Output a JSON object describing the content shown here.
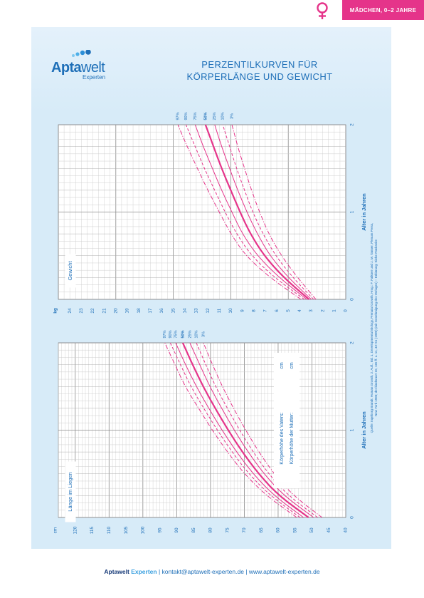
{
  "badge": {
    "label": "MÄDCHEN, 0–2 JAHRE"
  },
  "logo": {
    "name_bold": "Apta",
    "name_thin": "welt",
    "sub": "Experten"
  },
  "title": {
    "line1": "PERZENTILKURVEN FÜR",
    "line2": "KÖRPERLÄNGE UND GEWICHT"
  },
  "colors": {
    "accent": "#e5348a",
    "blue": "#1e6fb8",
    "panel": "#d7ebf8"
  },
  "source_text": "Quelle: Ingeborg Brandt: Human Growth, 2. Aufl., Bd. 1, Developmental Biology, Prenatal Growth, Hrsg.: F. Falkner und J. M. Tanner, Plenum Press, New York 1986; der kinderarzt 10, 165 ff. u. 11, 43–51 (1980) (mit Genehmigung des Verlages) – Erklärung: Siehe Rückseite",
  "footer": {
    "brand_bold": "Aptawelt",
    "brand_light": "Experten",
    "rest": " | kontakt@aptawelt-experten.de | www.aptawelt-experten.de"
  },
  "chart_data": [
    {
      "type": "line",
      "name": "Gewicht",
      "label": "Gewicht",
      "xlabel": "Alter in Jahren",
      "ylabel": "kg",
      "xlim": [
        0,
        2
      ],
      "ylim": [
        0,
        25
      ],
      "x_ticks": [
        "0",
        "1",
        "2"
      ],
      "y_ticks": [
        "0",
        "1",
        "2",
        "3",
        "4",
        "5",
        "6",
        "7",
        "8",
        "9",
        "10",
        "11",
        "12",
        "13",
        "14",
        "15",
        "16",
        "17",
        "18",
        "19",
        "20",
        "21",
        "22",
        "23",
        "24"
      ],
      "x": [
        0,
        0.25,
        0.5,
        0.75,
        1.0,
        1.25,
        1.5,
        1.75,
        2.0
      ],
      "series": [
        {
          "name": "97%",
          "style": "dashdot",
          "values": [
            3.9,
            6.6,
            8.7,
            10.0,
            11.0,
            12.0,
            12.9,
            13.8,
            14.6
          ]
        },
        {
          "name": "90%",
          "style": "dashed",
          "values": [
            3.6,
            6.2,
            8.2,
            9.5,
            10.5,
            11.4,
            12.3,
            13.1,
            13.9
          ]
        },
        {
          "name": "75%",
          "style": "solid",
          "values": [
            3.4,
            5.8,
            7.7,
            9.0,
            9.9,
            10.8,
            11.6,
            12.4,
            13.1
          ]
        },
        {
          "name": "50%",
          "style": "bold",
          "values": [
            3.2,
            5.4,
            7.1,
            8.3,
            9.2,
            10.0,
            10.8,
            11.5,
            12.2
          ]
        },
        {
          "name": "25%",
          "style": "solid",
          "values": [
            3.0,
            5.0,
            6.6,
            7.7,
            8.6,
            9.4,
            10.1,
            10.8,
            11.4
          ]
        },
        {
          "name": "10%",
          "style": "dashed",
          "values": [
            2.8,
            4.6,
            6.1,
            7.2,
            8.1,
            8.8,
            9.5,
            10.1,
            10.7
          ]
        },
        {
          "name": "3%",
          "style": "dashdot",
          "values": [
            2.6,
            4.2,
            5.6,
            6.7,
            7.5,
            8.2,
            8.8,
            9.4,
            9.9
          ]
        }
      ]
    },
    {
      "type": "line",
      "name": "Länge im Liegen",
      "label": "Länge im Liegen",
      "xlabel": "Alter in Jahren",
      "ylabel": "cm",
      "xlim": [
        0,
        2
      ],
      "ylim": [
        40,
        125
      ],
      "x_ticks": [
        "0",
        "1",
        "2"
      ],
      "y_ticks": [
        "40",
        "45",
        "50",
        "55",
        "60",
        "65",
        "70",
        "75",
        "80",
        "85",
        "90",
        "95",
        "100",
        "105",
        "110",
        "115",
        "120"
      ],
      "x": [
        0,
        0.25,
        0.5,
        0.75,
        1.0,
        1.25,
        1.5,
        1.75,
        2.0
      ],
      "series": [
        {
          "name": "97%",
          "style": "dashdot",
          "values": [
            54.5,
            63.5,
            70.0,
            75.0,
            79.5,
            83.5,
            87.5,
            90.5,
            93.5
          ]
        },
        {
          "name": "90%",
          "style": "dashed",
          "values": [
            53.5,
            62.3,
            68.7,
            73.6,
            78.0,
            82.0,
            85.8,
            88.9,
            91.9
          ]
        },
        {
          "name": "75%",
          "style": "solid",
          "values": [
            52.5,
            61.2,
            67.4,
            72.3,
            76.6,
            80.5,
            84.2,
            87.4,
            90.3
          ]
        },
        {
          "name": "50%",
          "style": "bold",
          "values": [
            51.0,
            59.8,
            65.8,
            70.6,
            74.8,
            78.6,
            82.2,
            85.3,
            88.2
          ]
        },
        {
          "name": "25%",
          "style": "solid",
          "values": [
            49.5,
            58.3,
            64.2,
            68.9,
            73.0,
            76.7,
            80.2,
            83.2,
            86.1
          ]
        },
        {
          "name": "10%",
          "style": "dashed",
          "values": [
            48.3,
            57.0,
            62.8,
            67.4,
            71.4,
            75.0,
            78.5,
            81.4,
            84.2
          ]
        },
        {
          "name": "3%",
          "style": "dashdot",
          "values": [
            47.0,
            55.5,
            61.2,
            65.7,
            69.6,
            73.2,
            76.5,
            79.4,
            82.1
          ]
        }
      ]
    }
  ],
  "parents": {
    "vater": "Körperhöhe des Vaters:",
    "mutter": "Körperhöhe der Mutter:",
    "unit": "cm"
  }
}
